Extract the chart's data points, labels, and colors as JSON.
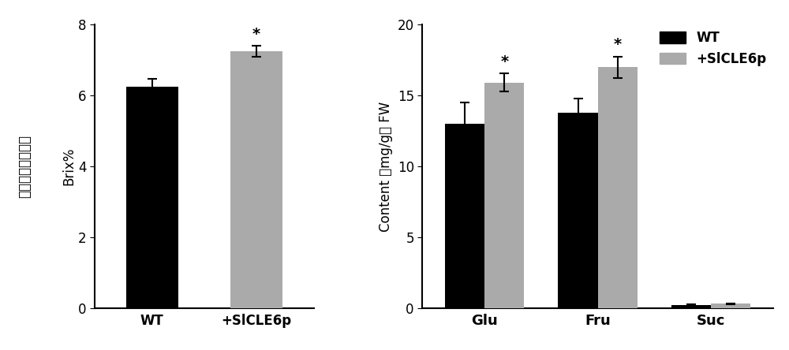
{
  "left_chart": {
    "categories": [
      "WT",
      "+SlCLE6p"
    ],
    "values": [
      6.25,
      7.25
    ],
    "errors": [
      0.22,
      0.15
    ],
    "bar_colors": [
      "#000000",
      "#aaaaaa"
    ],
    "ylabel_chinese": "可溶性固形物含量",
    "ylabel_english": "Brix%",
    "ylim": [
      0,
      8
    ],
    "yticks": [
      0,
      2,
      4,
      6,
      8
    ],
    "significance": [
      false,
      true
    ],
    "bar_width": 0.5
  },
  "right_chart": {
    "groups": [
      "Glu",
      "Fru",
      "Suc"
    ],
    "wt_values": [
      13.0,
      13.8,
      0.2
    ],
    "wt_errors": [
      1.5,
      1.0,
      0.04
    ],
    "treat_values": [
      15.9,
      17.0,
      0.3
    ],
    "treat_errors": [
      0.65,
      0.75,
      0.04
    ],
    "wt_color": "#000000",
    "treat_color": "#aaaaaa",
    "ylabel_line1": "Content （mg/g）",
    "ylabel_line2": "FW",
    "ylim": [
      0,
      20
    ],
    "yticks": [
      0,
      5,
      10,
      15,
      20
    ],
    "significance_treat": [
      true,
      true,
      false
    ],
    "bar_width": 0.35
  },
  "legend": {
    "labels": [
      "WT",
      "+SlCLE6p"
    ],
    "colors": [
      "#000000",
      "#aaaaaa"
    ]
  },
  "capsize": 4,
  "fontsize_tick": 12,
  "fontsize_label": 12,
  "fontsize_star": 14,
  "fontsize_legend": 12,
  "error_linewidth": 1.5,
  "background_color": "#ffffff"
}
